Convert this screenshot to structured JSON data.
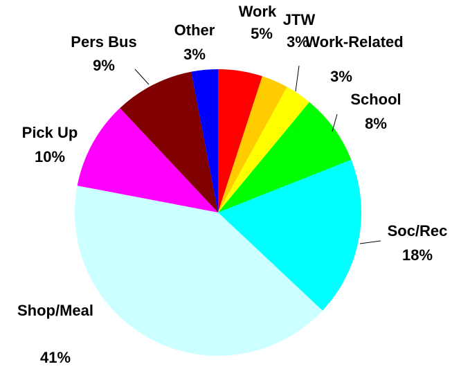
{
  "chart_data": {
    "type": "pie",
    "categories": [
      "Work",
      "JTW",
      "Work-Related",
      "School",
      "Soc/Rec",
      "Shop/Meal",
      "Pick Up",
      "Pers Bus",
      "Other"
    ],
    "values": [
      5,
      3,
      3,
      8,
      18,
      41,
      10,
      9,
      3
    ],
    "value_labels": [
      "5%",
      "3%",
      "3%",
      "8%",
      "18%",
      "41%",
      "10%",
      "9%",
      "3%"
    ],
    "colors": [
      "#FF0000",
      "#FFCC00",
      "#FFFF00",
      "#00FF00",
      "#00FFFF",
      "#CCFFFF",
      "#FF00FF",
      "#800000",
      "#0000FF"
    ]
  }
}
